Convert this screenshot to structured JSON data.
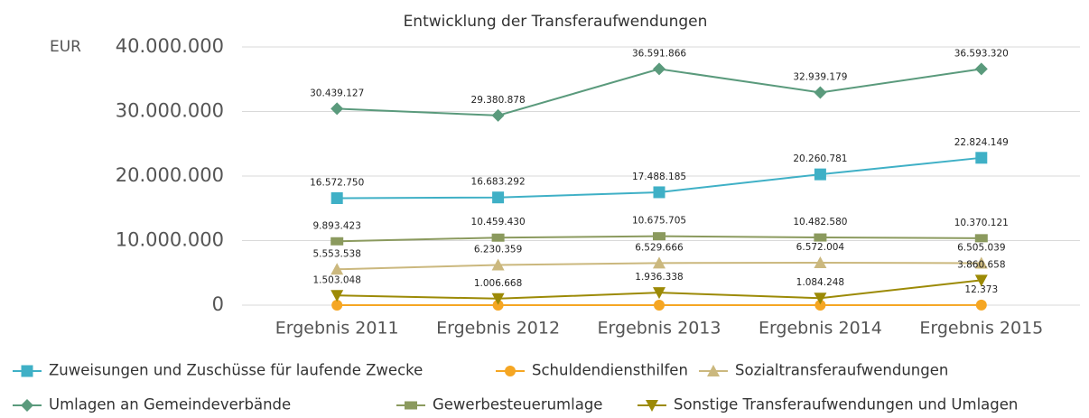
{
  "chart_data": {
    "type": "line",
    "title": "Entwicklung der Transferaufwendungen",
    "y_label": "EUR",
    "categories": [
      "Ergebnis 2011",
      "Ergebnis 2012",
      "Ergebnis 2013",
      "Ergebnis 2014",
      "Ergebnis 2015"
    ],
    "ylim": [
      0,
      40000000
    ],
    "yticks": [
      0,
      {
        "value": 10000000,
        "label": "10.000.000"
      },
      {
        "value": 20000000,
        "label": "20.000.000"
      },
      {
        "value": 30000000,
        "label": "30.000.000"
      },
      {
        "value": 40000000,
        "label": "40.000.000"
      }
    ],
    "grid": true,
    "legend": "bottom",
    "series": [
      {
        "name": "Zuweisungen und Zuschüsse für laufende Zwecke",
        "color": "#3fb0c6",
        "marker": "square",
        "values": [
          16572750,
          16683292,
          17488185,
          20260781,
          22824149
        ],
        "value_labels": [
          "16.572.750",
          "16.683.292",
          "17.488.185",
          "20.260.781",
          "22.824.149"
        ]
      },
      {
        "name": "Schuldendiensthilfen",
        "color": "#f5a623",
        "marker": "circle",
        "values": [
          0,
          0,
          0,
          0,
          12373
        ],
        "value_labels": [
          null,
          null,
          null,
          null,
          "12.373"
        ]
      },
      {
        "name": "Sozialtransferaufwendungen",
        "color": "#cbb87e",
        "marker": "triangle",
        "values": [
          5553538,
          6230359,
          6529666,
          6572004,
          6505039
        ],
        "value_labels": [
          "5.553.538",
          "6.230.359",
          "6.529.666",
          "6.572.004",
          "6.505.039"
        ]
      },
      {
        "name": "Umlagen an Gemeindeverbände",
        "color": "#5a9a7c",
        "marker": "diamond",
        "values": [
          30439127,
          29380878,
          36591866,
          32939179,
          36593320
        ],
        "value_labels": [
          "30.439.127",
          "29.380.878",
          "36.591.866",
          "32.939.179",
          "36.593.320"
        ]
      },
      {
        "name": "Gewerbesteuerumlage",
        "color": "#8b9a5e",
        "marker": "rect",
        "values": [
          9893423,
          10459430,
          10675705,
          10482580,
          10370121
        ],
        "value_labels": [
          "9.893.423",
          "10.459.430",
          "10.675.705",
          "10.482.580",
          "10.370.121"
        ]
      },
      {
        "name": "Sonstige Transferaufwendungen und Umlagen",
        "color": "#9c8a06",
        "marker": "triangle-down",
        "values": [
          1503048,
          1006668,
          1936338,
          1084248,
          3860658
        ],
        "value_labels": [
          "1.503.048",
          "1.006.668",
          "1.936.338",
          "1.084.248",
          "3.860.658"
        ]
      }
    ]
  }
}
